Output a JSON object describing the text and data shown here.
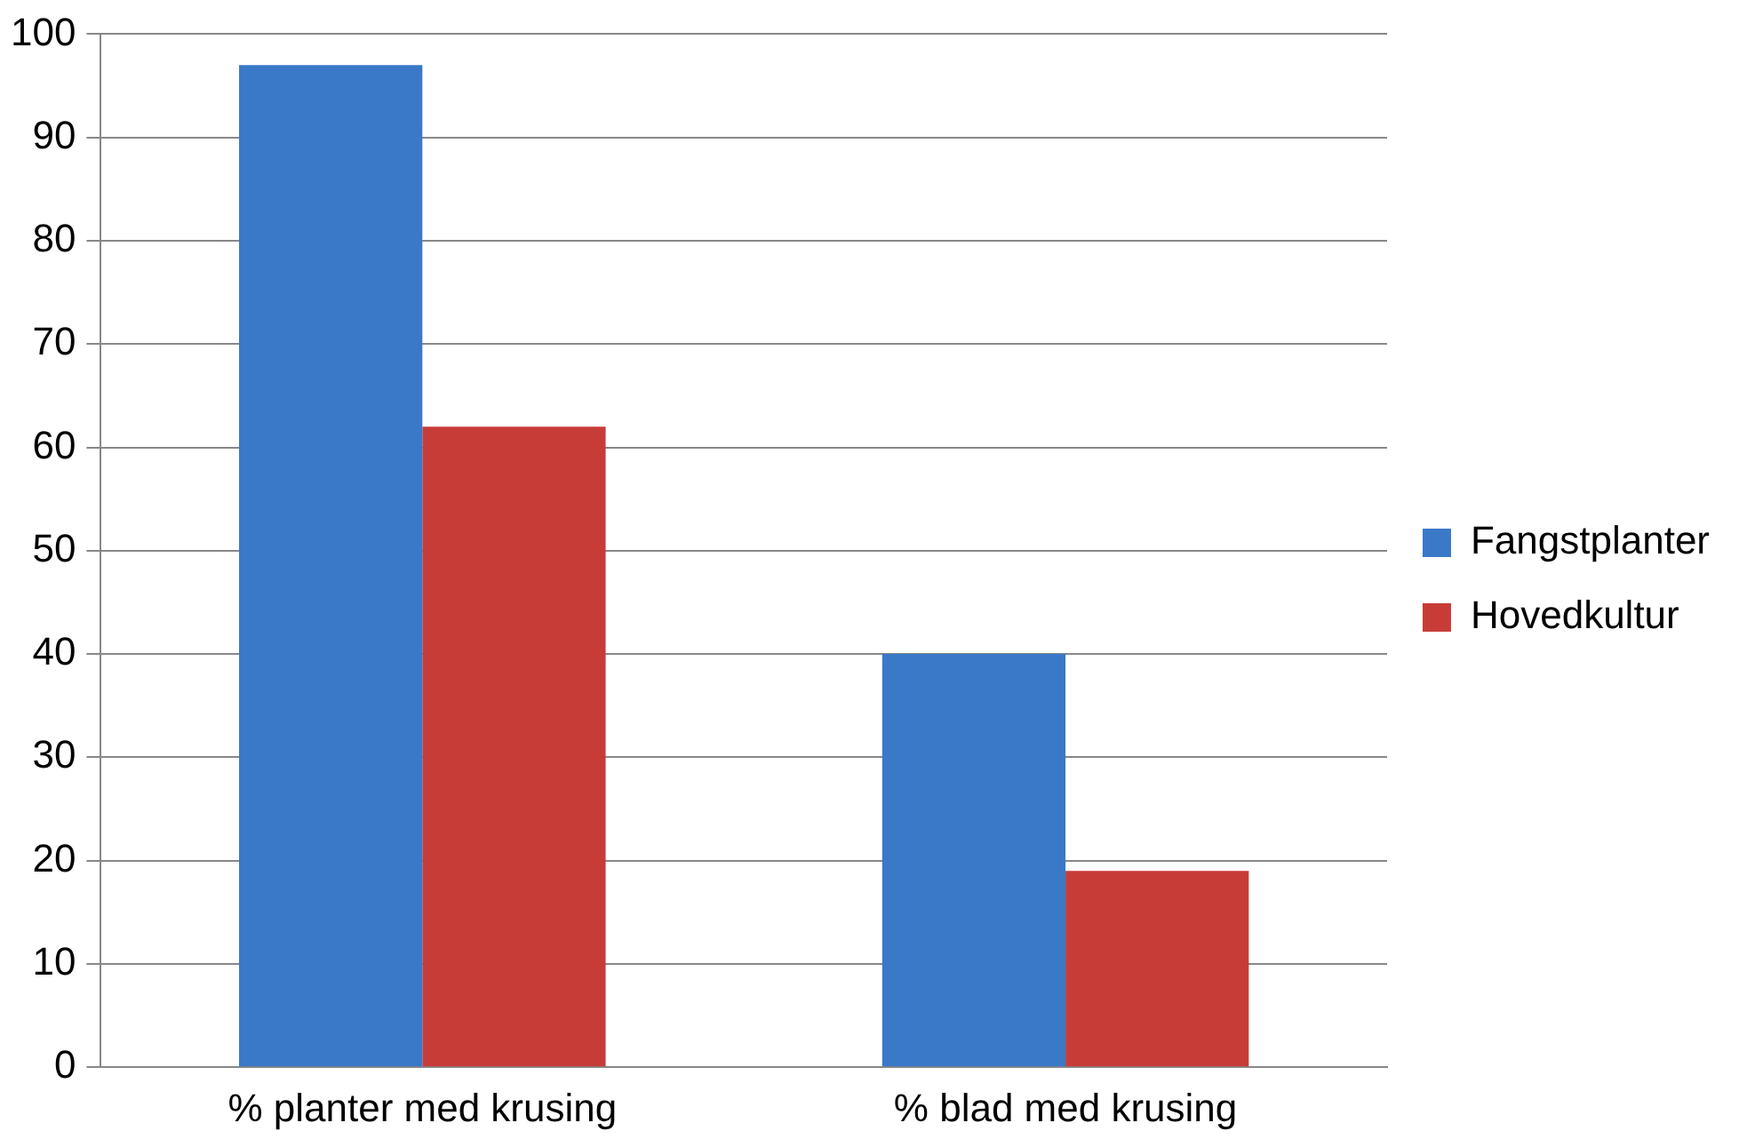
{
  "chart_data": {
    "type": "bar",
    "categories": [
      "% planter med krusing",
      "% blad med krusing"
    ],
    "series": [
      {
        "name": "Fangstplanter",
        "color": "#3a78c8",
        "values": [
          97,
          40
        ]
      },
      {
        "name": "Hovedkultur",
        "color": "#c83c38",
        "values": [
          62,
          19
        ]
      }
    ],
    "ylim": [
      0,
      100
    ],
    "yticks": [
      0,
      10,
      20,
      30,
      40,
      50,
      60,
      70,
      80,
      90,
      100
    ],
    "grid": "y",
    "legend": "right"
  }
}
